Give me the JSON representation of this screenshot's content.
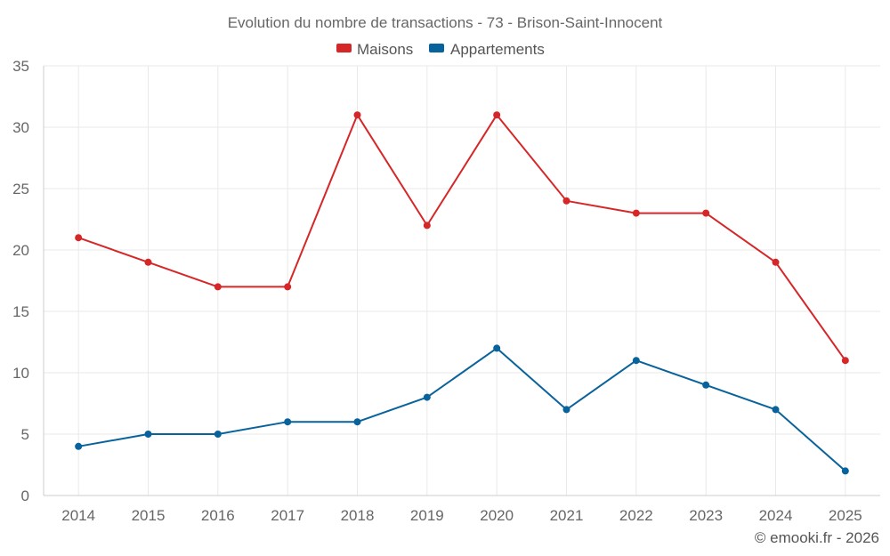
{
  "chart_data": {
    "type": "line",
    "title": "Evolution du nombre de transactions - 73 - Brison-Saint-Innocent",
    "categories": [
      "2014",
      "2015",
      "2016",
      "2017",
      "2018",
      "2019",
      "2020",
      "2021",
      "2022",
      "2023",
      "2024",
      "2025"
    ],
    "series": [
      {
        "name": "Maisons",
        "color": "#d62728",
        "values": [
          21,
          19,
          17,
          17,
          31,
          22,
          31,
          24,
          23,
          23,
          19,
          11
        ]
      },
      {
        "name": "Appartements",
        "color": "#08629c",
        "values": [
          4,
          5,
          5,
          6,
          6,
          8,
          12,
          7,
          11,
          9,
          7,
          2
        ]
      }
    ],
    "ylim": [
      0,
      35
    ],
    "yticks": [
      "0",
      "5",
      "10",
      "15",
      "20",
      "25",
      "30",
      "35"
    ],
    "xlabel": "",
    "ylabel": "",
    "grid": true,
    "legend_position": "top-center"
  },
  "credits": "© emooki.fr - 2026"
}
